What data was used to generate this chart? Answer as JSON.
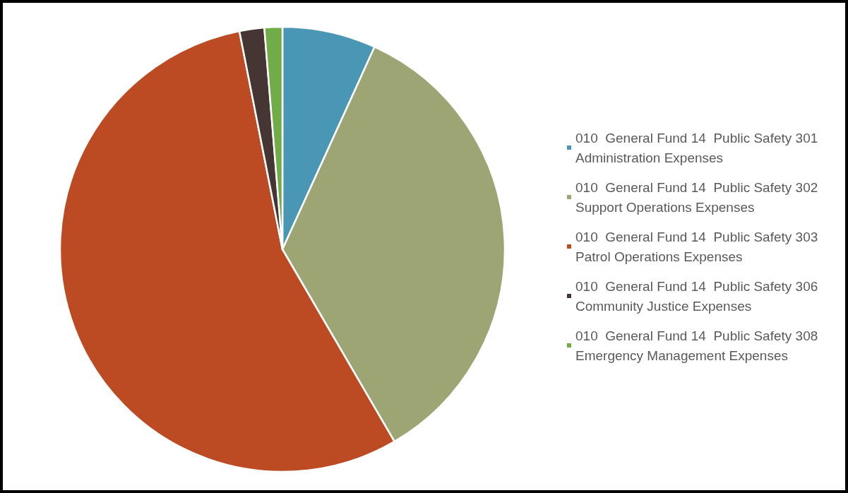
{
  "chart_data": {
    "type": "pie",
    "categories": [
      "010  General Fund 14  Public Safety 301 Administration Expenses",
      "010  General Fund 14  Public Safety 302 Support Operations Expenses",
      "010  General Fund 14  Public Safety 303 Patrol Operations Expenses",
      "010  General Fund 14  Public Safety 306 Community Justice Expenses",
      "010  General Fund 14  Public Safety 308 Emergency Management Expenses"
    ],
    "values": [
      6.8,
      34.8,
      55.3,
      1.8,
      1.3
    ],
    "colors": [
      "#4a96b5",
      "#9da574",
      "#bc4b24",
      "#453533",
      "#70ad47"
    ],
    "legend": "right"
  }
}
